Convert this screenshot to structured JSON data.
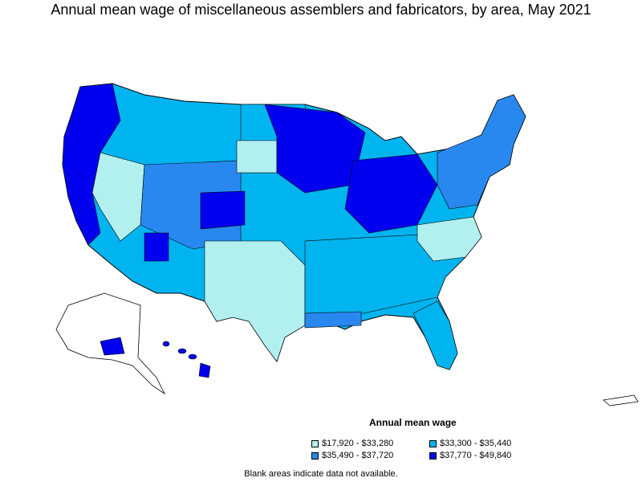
{
  "title": "Annual mean wage of miscellaneous assemblers and fabricators, by area, May 2021",
  "legend": {
    "title": "Annual mean wage",
    "items": [
      {
        "label": "$17,920 - $33,280",
        "color": "#b2f0f0"
      },
      {
        "label": "$33,300 - $35,440",
        "color": "#00b4f0"
      },
      {
        "label": "$35,490 - $37,720",
        "color": "#2888f0"
      },
      {
        "label": "$37,770 - $49,840",
        "color": "#0000ee"
      }
    ]
  },
  "note": "Blank areas indicate data not available.",
  "colors": {
    "outline": "#000000",
    "no_data": "#ffffff"
  }
}
